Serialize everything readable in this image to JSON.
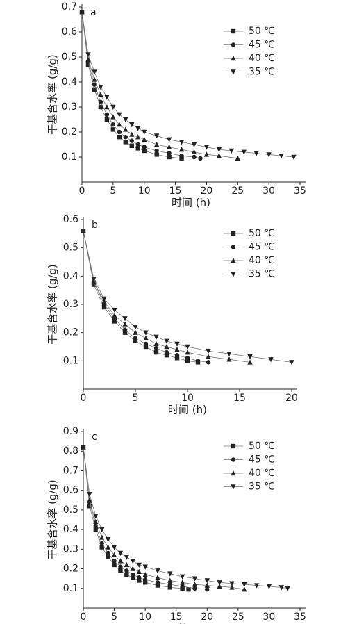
{
  "chart_data": [
    {
      "type": "line",
      "panel": "a",
      "y_label": "干基含水率 (g/g)",
      "x_label": "时间 (h)",
      "xlim": [
        0,
        35
      ],
      "ylim": [
        0,
        0.7
      ],
      "xticks": [
        0,
        5,
        10,
        15,
        20,
        25,
        30,
        35
      ],
      "yticks": [
        0.1,
        0.2,
        0.3,
        0.4,
        0.5,
        0.6,
        0.7
      ],
      "series": [
        {
          "name": "50 ℃",
          "color": "#222",
          "marker": "square",
          "x": [
            0,
            1,
            2,
            3,
            4,
            5,
            6,
            7,
            8,
            9,
            10,
            12,
            14,
            16
          ],
          "values": [
            0.68,
            0.47,
            0.37,
            0.3,
            0.25,
            0.21,
            0.18,
            0.16,
            0.145,
            0.135,
            0.125,
            0.11,
            0.1,
            0.095
          ]
        },
        {
          "name": "45 ℃",
          "color": "#222",
          "marker": "circle",
          "x": [
            0,
            1,
            2,
            3,
            4,
            5,
            6,
            7,
            8,
            9,
            10,
            12,
            14,
            16,
            18,
            19
          ],
          "values": [
            0.68,
            0.48,
            0.39,
            0.32,
            0.27,
            0.23,
            0.2,
            0.18,
            0.165,
            0.15,
            0.14,
            0.125,
            0.115,
            0.105,
            0.1,
            0.095
          ]
        },
        {
          "name": "40 ℃",
          "color": "#222",
          "marker": "triangle-up",
          "x": [
            0,
            1,
            2,
            3,
            4,
            5,
            6,
            7,
            8,
            9,
            10,
            12,
            14,
            16,
            18,
            20,
            22,
            25
          ],
          "values": [
            0.68,
            0.49,
            0.41,
            0.35,
            0.3,
            0.26,
            0.23,
            0.21,
            0.19,
            0.18,
            0.17,
            0.15,
            0.14,
            0.13,
            0.12,
            0.11,
            0.105,
            0.095
          ]
        },
        {
          "name": "35 ℃",
          "color": "#222",
          "marker": "triangle-down",
          "x": [
            0,
            1,
            2,
            3,
            4,
            5,
            6,
            7,
            8,
            9,
            10,
            12,
            14,
            16,
            18,
            20,
            22,
            24,
            26,
            28,
            30,
            32,
            34
          ],
          "values": [
            0.68,
            0.51,
            0.44,
            0.38,
            0.34,
            0.3,
            0.27,
            0.25,
            0.23,
            0.215,
            0.2,
            0.185,
            0.17,
            0.16,
            0.15,
            0.14,
            0.13,
            0.125,
            0.12,
            0.115,
            0.11,
            0.105,
            0.1
          ]
        }
      ]
    },
    {
      "type": "line",
      "panel": "b",
      "y_label": "干基含水率 (g/g)",
      "x_label": "时间 (h)",
      "xlim": [
        0,
        20
      ],
      "ylim": [
        0,
        0.6
      ],
      "xticks": [
        0,
        5,
        10,
        15,
        20
      ],
      "yticks": [
        0.1,
        0.2,
        0.3,
        0.4,
        0.5,
        0.6
      ],
      "series": [
        {
          "name": "50 ℃",
          "color": "#222",
          "marker": "square",
          "x": [
            0,
            1,
            2,
            3,
            4,
            5,
            6,
            7,
            8,
            9,
            10,
            11
          ],
          "values": [
            0.56,
            0.37,
            0.29,
            0.24,
            0.2,
            0.17,
            0.15,
            0.13,
            0.12,
            0.11,
            0.1,
            0.095
          ]
        },
        {
          "name": "45 ℃",
          "color": "#222",
          "marker": "circle",
          "x": [
            0,
            1,
            2,
            3,
            4,
            5,
            6,
            7,
            8,
            9,
            10,
            11,
            12
          ],
          "values": [
            0.56,
            0.38,
            0.3,
            0.25,
            0.21,
            0.18,
            0.16,
            0.145,
            0.13,
            0.12,
            0.11,
            0.1,
            0.095
          ]
        },
        {
          "name": "40 ℃",
          "color": "#222",
          "marker": "triangle-up",
          "x": [
            0,
            1,
            2,
            3,
            4,
            5,
            6,
            7,
            8,
            9,
            10,
            12,
            14,
            16
          ],
          "values": [
            0.56,
            0.38,
            0.31,
            0.26,
            0.23,
            0.2,
            0.18,
            0.16,
            0.15,
            0.14,
            0.13,
            0.115,
            0.105,
            0.095
          ]
        },
        {
          "name": "35 ℃",
          "color": "#222",
          "marker": "triangle-down",
          "x": [
            0,
            1,
            2,
            3,
            4,
            5,
            6,
            7,
            8,
            9,
            10,
            12,
            14,
            16,
            18,
            20
          ],
          "values": [
            0.56,
            0.39,
            0.32,
            0.28,
            0.25,
            0.22,
            0.2,
            0.185,
            0.17,
            0.16,
            0.15,
            0.135,
            0.125,
            0.115,
            0.105,
            0.095
          ]
        }
      ]
    },
    {
      "type": "line",
      "panel": "c",
      "y_label": "干基含水率 (g/g)",
      "x_label": "时间 (h)",
      "xlim": [
        0,
        35
      ],
      "ylim": [
        0,
        0.9
      ],
      "xticks": [
        0,
        5,
        10,
        15,
        20,
        25,
        30,
        35
      ],
      "yticks": [
        0.1,
        0.2,
        0.3,
        0.4,
        0.5,
        0.6,
        0.7,
        0.8,
        0.9
      ],
      "series": [
        {
          "name": "50 ℃",
          "color": "#222",
          "marker": "square",
          "x": [
            0,
            1,
            2,
            3,
            4,
            5,
            6,
            7,
            8,
            9,
            10,
            12,
            14,
            16,
            17
          ],
          "values": [
            0.82,
            0.52,
            0.4,
            0.31,
            0.26,
            0.22,
            0.19,
            0.17,
            0.155,
            0.14,
            0.13,
            0.115,
            0.105,
            0.1,
            0.095
          ]
        },
        {
          "name": "45 ℃",
          "color": "#222",
          "marker": "circle",
          "x": [
            0,
            1,
            2,
            3,
            4,
            5,
            6,
            7,
            8,
            9,
            10,
            12,
            14,
            16,
            18,
            20
          ],
          "values": [
            0.82,
            0.54,
            0.42,
            0.33,
            0.28,
            0.24,
            0.21,
            0.19,
            0.17,
            0.155,
            0.145,
            0.13,
            0.12,
            0.11,
            0.1,
            0.095
          ]
        },
        {
          "name": "40 ℃",
          "color": "#222",
          "marker": "triangle-up",
          "x": [
            0,
            1,
            2,
            3,
            4,
            5,
            6,
            7,
            8,
            9,
            10,
            12,
            14,
            16,
            18,
            20,
            22,
            24,
            26
          ],
          "values": [
            0.82,
            0.55,
            0.44,
            0.36,
            0.31,
            0.27,
            0.24,
            0.22,
            0.2,
            0.185,
            0.17,
            0.155,
            0.14,
            0.13,
            0.12,
            0.115,
            0.11,
            0.105,
            0.095
          ]
        },
        {
          "name": "35 ℃",
          "color": "#222",
          "marker": "triangle-down",
          "x": [
            0,
            1,
            2,
            3,
            4,
            5,
            6,
            7,
            8,
            9,
            10,
            12,
            14,
            16,
            18,
            20,
            22,
            24,
            26,
            28,
            30,
            32,
            33
          ],
          "values": [
            0.82,
            0.58,
            0.47,
            0.4,
            0.35,
            0.31,
            0.28,
            0.26,
            0.24,
            0.22,
            0.21,
            0.19,
            0.175,
            0.16,
            0.15,
            0.14,
            0.13,
            0.125,
            0.12,
            0.115,
            0.11,
            0.105,
            0.1
          ]
        }
      ]
    }
  ]
}
